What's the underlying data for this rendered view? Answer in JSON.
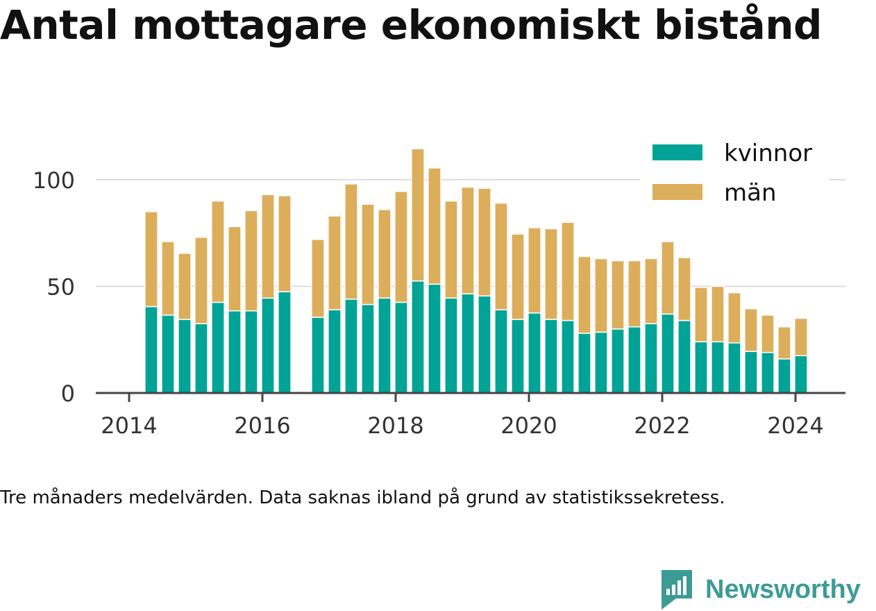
{
  "title": "Antal mottagare ekonomiskt bistånd",
  "note": "Tre månaders medelvärden. Data saknas ibland på grund av statistikssekretess.",
  "brand": {
    "name": "Newsworthy"
  },
  "colors": {
    "kvinnor": "#00a396",
    "man": "#dcae5b",
    "axis": "#444444",
    "grid": "#dddddd",
    "text": "#333333"
  },
  "chart_data": {
    "type": "bar",
    "stacked": true,
    "xlim": [
      2013.5,
      2024.75
    ],
    "ylim": [
      0,
      125
    ],
    "x_ticks": [
      2014,
      2016,
      2018,
      2020,
      2022,
      2024
    ],
    "x_tick_labels": [
      "2014",
      "2016",
      "2018",
      "2020",
      "2022",
      "2024"
    ],
    "y_ticks": [
      0,
      50,
      100
    ],
    "y_tick_labels": [
      "0",
      "50",
      "100"
    ],
    "grid": true,
    "legend": {
      "placement": "top-right",
      "entries": [
        "kvinnor",
        "män"
      ]
    },
    "x": [
      2014.333,
      2014.583,
      2014.833,
      2015.083,
      2015.333,
      2015.583,
      2015.833,
      2016.083,
      2016.333,
      2016.833,
      2017.083,
      2017.333,
      2017.583,
      2017.833,
      2018.083,
      2018.333,
      2018.583,
      2018.833,
      2019.083,
      2019.333,
      2019.583,
      2019.833,
      2020.083,
      2020.333,
      2020.583,
      2020.833,
      2021.083,
      2021.333,
      2021.583,
      2021.833,
      2022.083,
      2022.333,
      2022.583,
      2022.833,
      2023.083,
      2023.333,
      2023.583,
      2023.833,
      2024.083
    ],
    "series": [
      {
        "name": "kvinnor",
        "values": [
          40.5,
          36.5,
          34.5,
          32.5,
          42.5,
          38.5,
          38.5,
          44.5,
          47.5,
          35.5,
          39,
          44,
          41.5,
          44.5,
          42.5,
          52.5,
          51,
          44.5,
          46.5,
          45.5,
          39,
          34.5,
          37.5,
          34.5,
          34,
          28,
          28.5,
          30,
          31,
          32.5,
          37,
          34,
          24,
          24,
          23.5,
          19.5,
          19,
          16,
          17.5
        ]
      },
      {
        "name": "män",
        "values": [
          44.5,
          34.5,
          31,
          40.5,
          47.5,
          39.5,
          47,
          48.5,
          45,
          36.5,
          44,
          54,
          47,
          41.5,
          52,
          62,
          54.5,
          45.5,
          50,
          50.5,
          50,
          40,
          40,
          42.5,
          46,
          36,
          34.5,
          32,
          31,
          30.5,
          34,
          29.5,
          25.5,
          26,
          23.5,
          20,
          17.5,
          15,
          17.5
        ]
      }
    ]
  }
}
